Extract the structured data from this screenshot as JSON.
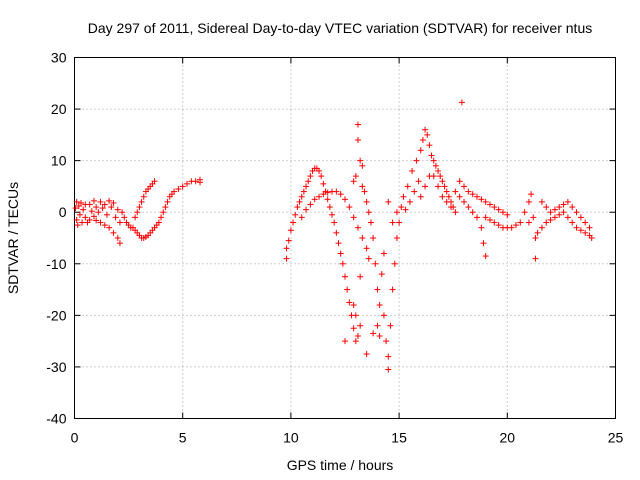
{
  "chart_data": {
    "type": "scatter",
    "title": "Day 297 of 2011, Sidereal Day-to-day VTEC variation (SDTVAR) for receiver ntus",
    "xlabel": "GPS time / hours",
    "ylabel": "SDTVAR / TECUs",
    "xlim": [
      0,
      25
    ],
    "ylim": [
      -40,
      30
    ],
    "xticks": [
      0,
      5,
      10,
      15,
      20,
      25
    ],
    "yticks": [
      -40,
      -30,
      -20,
      -10,
      0,
      10,
      20,
      30
    ],
    "xtick_labels": [
      "0",
      "5",
      "10",
      "15",
      "20",
      "25"
    ],
    "ytick_labels": [
      "-40",
      "-30",
      "-20",
      "-10",
      "0",
      "10",
      "20",
      "30"
    ],
    "grid": true,
    "marker": "+",
    "color": "#ff0000",
    "series": [
      {
        "points": [
          [
            0.05,
            0.8
          ],
          [
            0.1,
            -1.5
          ],
          [
            0.1,
            2.0
          ],
          [
            0.15,
            -2.5
          ],
          [
            0.2,
            1.2
          ],
          [
            0.25,
            -0.5
          ],
          [
            0.3,
            1.8
          ],
          [
            0.35,
            -2.0
          ],
          [
            0.4,
            0.5
          ],
          [
            0.5,
            1.5
          ],
          [
            0.5,
            -1.0
          ],
          [
            0.6,
            -2.0
          ],
          [
            0.7,
            1.5
          ],
          [
            0.7,
            -1.5
          ],
          [
            0.8,
            0.2
          ],
          [
            0.9,
            2.2
          ],
          [
            0.9,
            -0.8
          ],
          [
            1.0,
            1.0
          ],
          [
            1.0,
            -1.6
          ],
          [
            1.1,
            0.0
          ],
          [
            1.2,
            2.0
          ],
          [
            1.2,
            -2.0
          ],
          [
            1.3,
            0.8
          ],
          [
            1.4,
            -2.5
          ],
          [
            1.4,
            1.5
          ],
          [
            1.5,
            -0.5
          ],
          [
            1.6,
            2.2
          ],
          [
            1.6,
            -3.0
          ],
          [
            1.7,
            1.0
          ],
          [
            1.8,
            -4.0
          ],
          [
            1.8,
            1.8
          ],
          [
            1.9,
            -1.0
          ],
          [
            2.0,
            -5.0
          ],
          [
            2.0,
            0.5
          ],
          [
            2.1,
            -6.0
          ],
          [
            2.1,
            -2.0
          ],
          [
            2.2,
            0.0
          ],
          [
            2.3,
            -1.0
          ],
          [
            2.4,
            -2.0
          ],
          [
            2.5,
            -2.5
          ],
          [
            2.6,
            -3.0
          ],
          [
            2.7,
            -3.0
          ],
          [
            2.8,
            -3.5
          ],
          [
            2.8,
            -1.0
          ],
          [
            2.9,
            -4.0
          ],
          [
            2.9,
            0.0
          ],
          [
            3.0,
            -4.5
          ],
          [
            3.0,
            1.0
          ],
          [
            3.1,
            -5.0
          ],
          [
            3.1,
            2.0
          ],
          [
            3.2,
            -5.0
          ],
          [
            3.2,
            3.0
          ],
          [
            3.3,
            -4.8
          ],
          [
            3.3,
            4.0
          ],
          [
            3.4,
            -4.5
          ],
          [
            3.4,
            4.5
          ],
          [
            3.5,
            -4.0
          ],
          [
            3.5,
            5.0
          ],
          [
            3.6,
            -3.5
          ],
          [
            3.6,
            5.5
          ],
          [
            3.7,
            -3.0
          ],
          [
            3.7,
            6.0
          ],
          [
            3.8,
            -2.5
          ],
          [
            3.9,
            -2.0
          ],
          [
            4.0,
            -1.0
          ],
          [
            4.1,
            0.0
          ],
          [
            4.2,
            1.0
          ],
          [
            4.3,
            2.0
          ],
          [
            4.4,
            3.0
          ],
          [
            4.5,
            3.5
          ],
          [
            4.6,
            4.0
          ],
          [
            4.8,
            4.5
          ],
          [
            5.0,
            5.0
          ],
          [
            5.2,
            5.5
          ],
          [
            5.4,
            6.0
          ],
          [
            5.6,
            6.0
          ],
          [
            5.8,
            6.3
          ],
          [
            5.8,
            5.8
          ],
          [
            9.8,
            -9.0
          ],
          [
            9.8,
            -7.0
          ],
          [
            9.9,
            -5.5
          ],
          [
            10.0,
            -3.5
          ],
          [
            10.1,
            -2.0
          ],
          [
            10.2,
            -0.5
          ],
          [
            10.3,
            1.0
          ],
          [
            10.4,
            2.0
          ],
          [
            10.5,
            3.0
          ],
          [
            10.6,
            4.0
          ],
          [
            10.7,
            5.0
          ],
          [
            10.8,
            6.0
          ],
          [
            10.9,
            7.0
          ],
          [
            11.0,
            8.0
          ],
          [
            11.1,
            8.5
          ],
          [
            11.2,
            8.5
          ],
          [
            11.3,
            8.0
          ],
          [
            11.4,
            7.0
          ],
          [
            11.5,
            5.5
          ],
          [
            11.6,
            4.0
          ],
          [
            11.7,
            2.5
          ],
          [
            11.8,
            1.0
          ],
          [
            11.9,
            -0.5
          ],
          [
            12.0,
            -2.0
          ],
          [
            12.1,
            -4.0
          ],
          [
            12.2,
            -6.0
          ],
          [
            12.3,
            -8.0
          ],
          [
            12.4,
            -10.0
          ],
          [
            12.5,
            -12.5
          ],
          [
            12.6,
            -15.0
          ],
          [
            12.7,
            -17.5
          ],
          [
            12.8,
            -20.0
          ],
          [
            12.9,
            -22.5
          ],
          [
            13.0,
            -25.0
          ],
          [
            13.0,
            -20.0
          ],
          [
            13.1,
            -24.0
          ],
          [
            13.2,
            -22.0
          ],
          [
            12.5,
            -25.0
          ],
          [
            10.5,
            -1.0
          ],
          [
            10.7,
            0.5
          ],
          [
            10.9,
            1.5
          ],
          [
            11.1,
            2.5
          ],
          [
            11.3,
            3.0
          ],
          [
            11.5,
            3.5
          ],
          [
            11.7,
            3.8
          ],
          [
            11.9,
            4.0
          ],
          [
            12.1,
            4.0
          ],
          [
            12.3,
            3.5
          ],
          [
            12.5,
            2.5
          ],
          [
            12.7,
            1.0
          ],
          [
            12.9,
            -1.0
          ],
          [
            13.1,
            -3.0
          ],
          [
            13.3,
            -5.0
          ],
          [
            13.5,
            -7.0
          ],
          [
            13.6,
            -9.0
          ],
          [
            12.9,
            6.0
          ],
          [
            13.0,
            7.0
          ],
          [
            13.1,
            17.0
          ],
          [
            13.1,
            14.0
          ],
          [
            13.2,
            10.0
          ],
          [
            13.3,
            9.0
          ],
          [
            13.3,
            5.0
          ],
          [
            13.4,
            4.0
          ],
          [
            13.5,
            2.0
          ],
          [
            13.6,
            0.0
          ],
          [
            13.7,
            -2.0
          ],
          [
            13.8,
            -5.0
          ],
          [
            13.9,
            -10.0
          ],
          [
            14.0,
            -15.0
          ],
          [
            14.0,
            -22.0
          ],
          [
            14.1,
            -24.0
          ],
          [
            14.1,
            -18.0
          ],
          [
            14.2,
            -12.0
          ],
          [
            14.3,
            -8.0
          ],
          [
            14.3,
            -20.0
          ],
          [
            14.4,
            -25.0
          ],
          [
            14.5,
            -28.0
          ],
          [
            14.5,
            -30.5
          ],
          [
            14.6,
            -22.0
          ],
          [
            14.7,
            -15.0
          ],
          [
            14.8,
            -10.0
          ],
          [
            14.9,
            -5.0
          ],
          [
            13.5,
            -27.5
          ],
          [
            13.8,
            -23.5
          ],
          [
            13.2,
            -12.5
          ],
          [
            12.9,
            -18.0
          ],
          [
            14.5,
            2.0
          ],
          [
            14.7,
            -2.0
          ],
          [
            14.9,
            0.0
          ],
          [
            15.0,
            -2.0
          ],
          [
            15.1,
            1.0
          ],
          [
            15.2,
            3.0
          ],
          [
            15.3,
            0.5
          ],
          [
            15.4,
            5.0
          ],
          [
            15.5,
            2.0
          ],
          [
            15.6,
            8.0
          ],
          [
            15.7,
            4.0
          ],
          [
            15.8,
            10.0
          ],
          [
            15.9,
            6.0
          ],
          [
            16.0,
            12.0
          ],
          [
            16.1,
            14.0
          ],
          [
            16.2,
            16.0
          ],
          [
            16.3,
            15.0
          ],
          [
            16.4,
            13.0
          ],
          [
            16.5,
            11.0
          ],
          [
            16.6,
            10.0
          ],
          [
            16.7,
            9.0
          ],
          [
            16.8,
            8.0
          ],
          [
            16.9,
            7.0
          ],
          [
            17.0,
            6.0
          ],
          [
            17.1,
            5.0
          ],
          [
            17.2,
            4.0
          ],
          [
            17.3,
            3.0
          ],
          [
            17.4,
            2.0
          ],
          [
            17.5,
            1.0
          ],
          [
            17.6,
            0.0
          ],
          [
            16.0,
            3.0
          ],
          [
            16.2,
            5.0
          ],
          [
            16.4,
            7.0
          ],
          [
            16.6,
            7.0
          ],
          [
            16.8,
            5.0
          ],
          [
            17.0,
            3.0
          ],
          [
            17.2,
            2.0
          ],
          [
            17.4,
            1.0
          ],
          [
            17.6,
            4.0
          ],
          [
            17.8,
            3.0
          ],
          [
            18.0,
            2.0
          ],
          [
            18.2,
            1.0
          ],
          [
            18.4,
            0.0
          ],
          [
            18.6,
            -1.0
          ],
          [
            18.8,
            -3.0
          ],
          [
            18.9,
            -6.0
          ],
          [
            19.0,
            -8.5
          ],
          [
            17.9,
            21.3
          ],
          [
            17.8,
            6.0
          ],
          [
            18.0,
            5.0
          ],
          [
            18.2,
            4.0
          ],
          [
            18.4,
            3.5
          ],
          [
            18.6,
            3.0
          ],
          [
            18.8,
            2.5
          ],
          [
            19.0,
            2.0
          ],
          [
            19.2,
            1.5
          ],
          [
            19.4,
            1.0
          ],
          [
            19.6,
            0.5
          ],
          [
            19.8,
            0.0
          ],
          [
            20.0,
            -0.5
          ],
          [
            19.0,
            -1.0
          ],
          [
            19.2,
            -1.5
          ],
          [
            19.4,
            -2.0
          ],
          [
            19.6,
            -2.5
          ],
          [
            19.8,
            -3.0
          ],
          [
            20.0,
            -3.0
          ],
          [
            20.2,
            -3.0
          ],
          [
            20.4,
            -2.5
          ],
          [
            20.6,
            -2.0
          ],
          [
            20.8,
            0.0
          ],
          [
            21.0,
            2.0
          ],
          [
            21.1,
            3.5
          ],
          [
            21.0,
            -2.0
          ],
          [
            21.2,
            -1.0
          ],
          [
            21.3,
            -9.0
          ],
          [
            21.3,
            -5.0
          ],
          [
            21.4,
            -4.0
          ],
          [
            21.6,
            -3.0
          ],
          [
            21.8,
            -2.0
          ],
          [
            22.0,
            -1.5
          ],
          [
            22.2,
            -1.0
          ],
          [
            22.4,
            -0.5
          ],
          [
            22.6,
            0.0
          ],
          [
            22.8,
            -1.0
          ],
          [
            23.0,
            -2.0
          ],
          [
            23.2,
            -3.0
          ],
          [
            23.4,
            -3.5
          ],
          [
            23.6,
            -4.0
          ],
          [
            23.8,
            -4.5
          ],
          [
            23.9,
            -5.0
          ],
          [
            21.6,
            2.0
          ],
          [
            21.8,
            1.0
          ],
          [
            22.0,
            0.0
          ],
          [
            22.2,
            0.5
          ],
          [
            22.4,
            1.0
          ],
          [
            22.6,
            1.5
          ],
          [
            22.8,
            2.0
          ],
          [
            23.0,
            1.0
          ],
          [
            23.2,
            0.0
          ],
          [
            23.4,
            -1.0
          ],
          [
            23.6,
            -2.0
          ],
          [
            23.8,
            -3.0
          ]
        ]
      }
    ]
  }
}
